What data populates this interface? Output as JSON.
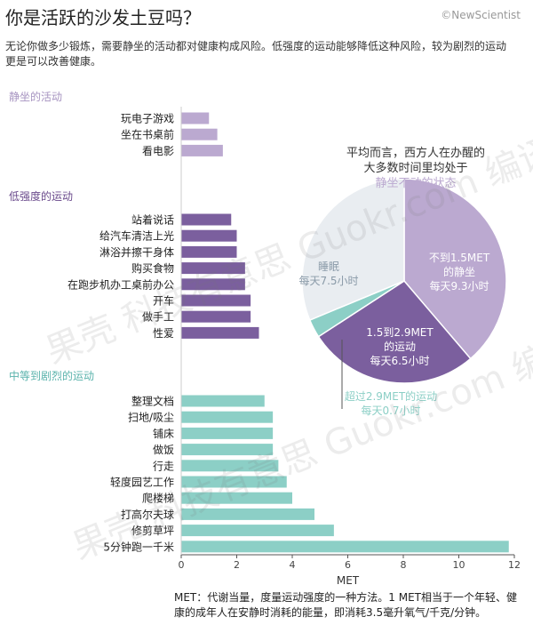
{
  "title": "你是活跃的沙发土豆吗？",
  "brand": "©NewScientist",
  "intro": "无论你做多少锻炼，需要静坐的活动都对健康构成风险。低强度的运动能够降低这种风险，较为剧烈的运动更是可以改善健康。",
  "watermark": "果壳 科技有意思 Guokr.com 编译",
  "sections": {
    "sedentary": "静坐的活动",
    "low": "低强度的运动",
    "moderate": "中等到剧烈的运动"
  },
  "colors": {
    "sedentary": "#bba9d0",
    "low": "#7b5f9e",
    "moderate": "#8ccfc6",
    "sleep": "#e9edf1",
    "axis": "#555555"
  },
  "chart_data": [
    {
      "type": "bar",
      "orientation": "horizontal",
      "xlabel": "MET",
      "xlim": [
        0,
        12
      ],
      "xticks": [
        0,
        2,
        4,
        6,
        8,
        10,
        12
      ],
      "groups": [
        {
          "name": "静坐的活动",
          "categories": [
            "玩电子游戏",
            "坐在书桌前",
            "看电影"
          ],
          "values": [
            1.0,
            1.3,
            1.5
          ]
        },
        {
          "name": "低强度的运动",
          "categories": [
            "站着说话",
            "给汽车清洁上光",
            "淋浴并擦干身体",
            "购买食物",
            "在跑步机办工桌前办公",
            "开车",
            "做手工",
            "性爱"
          ],
          "values": [
            1.8,
            2.0,
            2.0,
            2.3,
            2.3,
            2.5,
            2.5,
            2.8
          ]
        },
        {
          "name": "中等到剧烈的运动",
          "categories": [
            "整理文档",
            "扫地/吸尘",
            "铺床",
            "做饭",
            "行走",
            "轻度园艺工作",
            "爬楼梯",
            "打高尔夫球",
            "修剪草坪",
            "5分钟跑一千米"
          ],
          "values": [
            3.0,
            3.3,
            3.3,
            3.3,
            3.5,
            3.8,
            4.0,
            4.8,
            5.5,
            11.8
          ]
        }
      ]
    },
    {
      "type": "pie",
      "title_lines": [
        "平均而言，西方人在办醒的",
        "大多数时间里均处于"
      ],
      "title_highlight": "静坐不动的状态",
      "slices": [
        {
          "label_lines": [
            "不到1.5MET",
            "的静坐",
            "每天9.3小时"
          ],
          "hours": 9.3
        },
        {
          "label_lines": [
            "1.5到2.9MET",
            "的运动",
            "每天6.5小时"
          ],
          "hours": 6.5
        },
        {
          "label_lines": [
            "超过2.9MET的运动",
            "每天0.7小时"
          ],
          "hours": 0.7
        },
        {
          "label_lines": [
            "睡眠",
            "每天7.5小时"
          ],
          "hours": 7.5
        }
      ]
    }
  ],
  "footnote": "MET：代谢当量，度量运动强度的一种方法。1 MET相当于一个年轻、健康的成年人在安静时消耗的能量，即消耗3.5毫升氧气/千克/分钟。"
}
